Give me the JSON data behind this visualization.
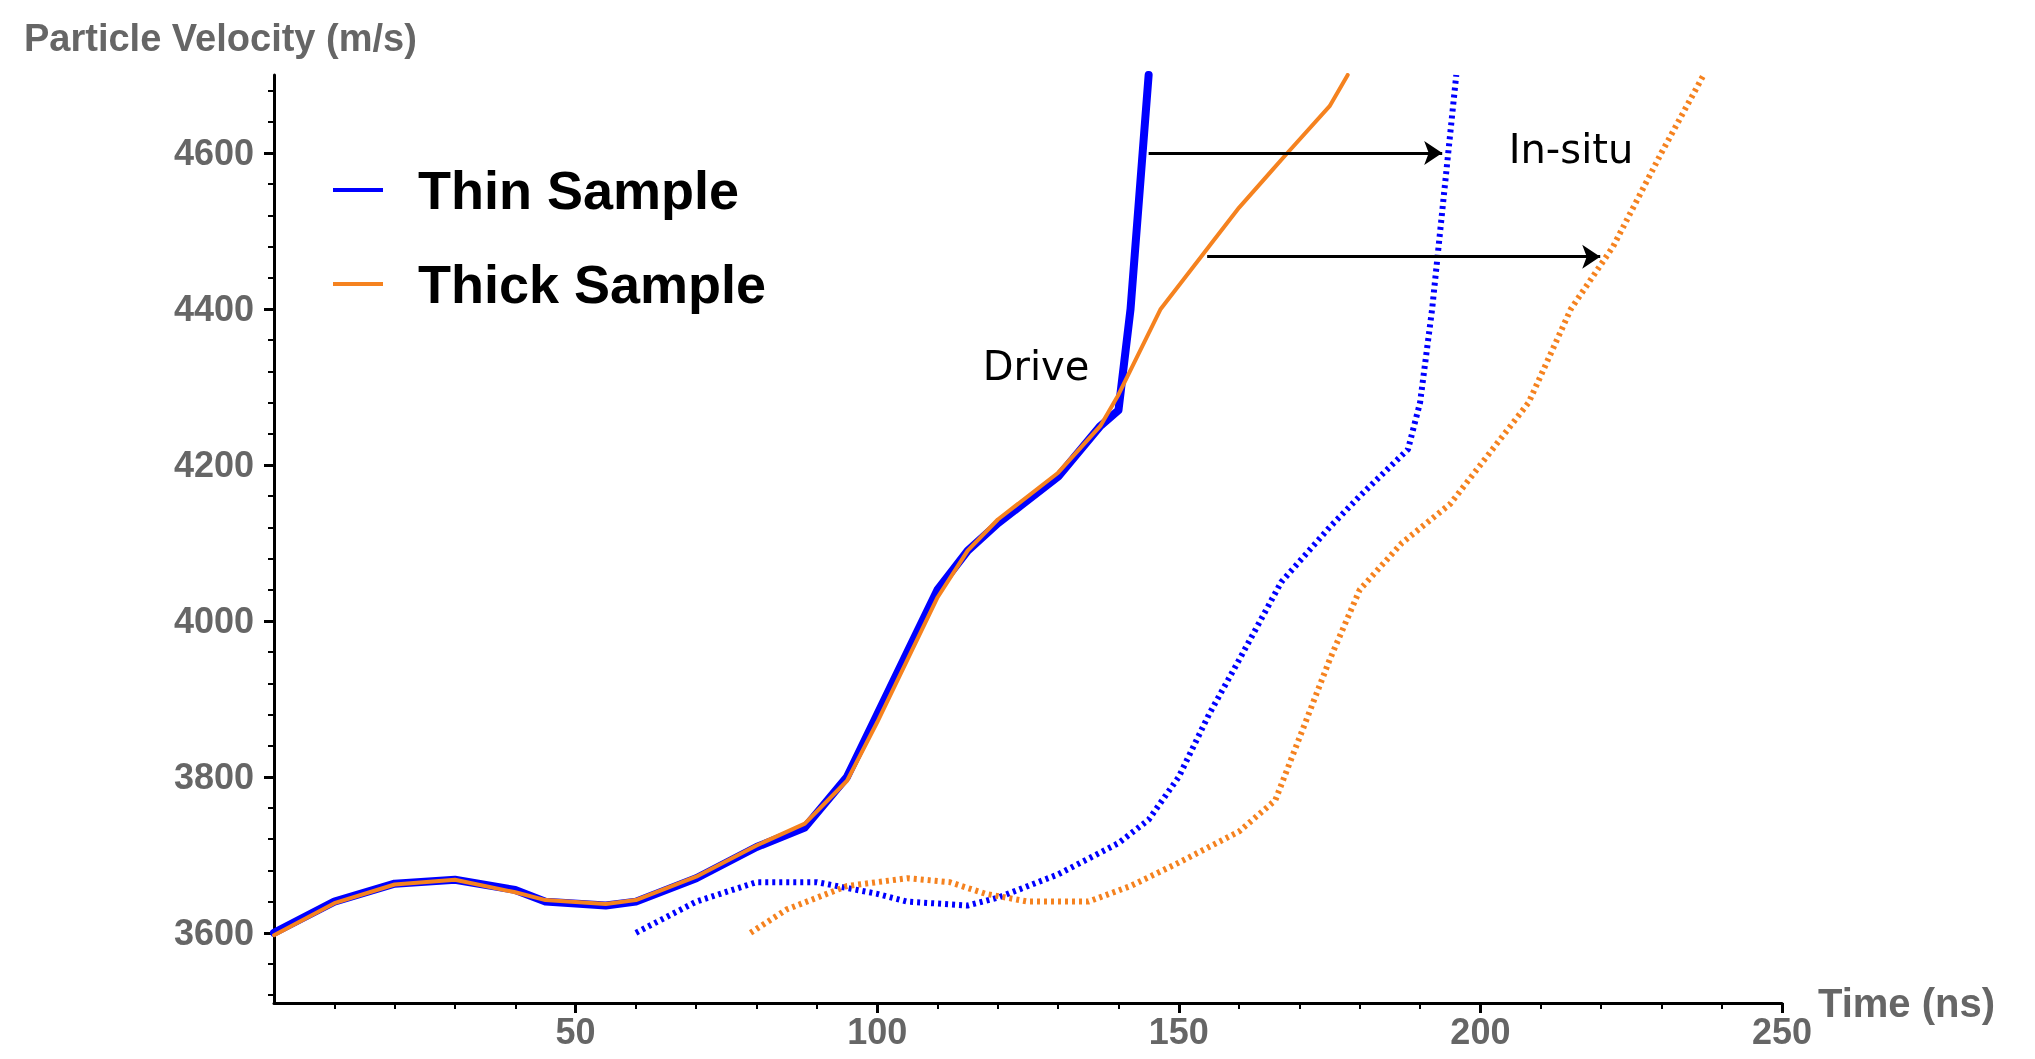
{
  "chart_data": {
    "type": "line",
    "ylabel": "Particle Velocity (m/s)",
    "xlabel": "Time (ns)",
    "xlim": [
      0,
      250
    ],
    "xticks": [
      50,
      100,
      150,
      200,
      250
    ],
    "ylim": [
      3510,
      4700
    ],
    "yticks": [
      3600,
      3800,
      4000,
      4200,
      4400,
      4600
    ],
    "grid": false,
    "legend": "top left",
    "marker": "none",
    "annotations": [
      "Drive",
      "In-situ"
    ],
    "series": [
      {
        "name": "Thin Sample",
        "color": "#0000ff",
        "line_style": "solid",
        "x": [
          0,
          10,
          20,
          30,
          40,
          45,
          55,
          60,
          70,
          80,
          88,
          95,
          100,
          105,
          110,
          115,
          120,
          130,
          137,
          140,
          142,
          144,
          145
        ],
        "values": [
          3600,
          3640,
          3663,
          3668,
          3655,
          3640,
          3635,
          3640,
          3670,
          3710,
          3735,
          3800,
          3880,
          3960,
          4040,
          4090,
          4125,
          4185,
          4250,
          4270,
          4400,
          4600,
          4700
        ]
      },
      {
        "name": "Thick Sample",
        "color": "#f5821f",
        "line_style": "solid",
        "x": [
          0,
          10,
          20,
          30,
          40,
          45,
          55,
          60,
          70,
          80,
          88,
          95,
          100,
          105,
          110,
          115,
          120,
          130,
          137,
          140,
          147,
          155,
          160,
          168,
          175,
          178
        ],
        "values": [
          3597,
          3638,
          3662,
          3668,
          3652,
          3642,
          3637,
          3642,
          3672,
          3712,
          3740,
          3795,
          3870,
          3950,
          4030,
          4090,
          4130,
          4190,
          4250,
          4290,
          4400,
          4480,
          4530,
          4600,
          4660,
          4700
        ]
      },
      {
        "color": "#0000ff",
        "line_style": "dotted",
        "x": [
          60,
          70,
          80,
          90,
          100,
          105,
          115,
          120,
          130,
          140,
          145,
          150,
          155,
          160,
          167,
          175,
          180,
          188,
          190,
          192,
          194,
          196
        ],
        "values": [
          3600,
          3640,
          3665,
          3665,
          3650,
          3640,
          3635,
          3645,
          3675,
          3715,
          3745,
          3800,
          3880,
          3950,
          4050,
          4120,
          4160,
          4220,
          4280,
          4400,
          4550,
          4700
        ]
      },
      {
        "color": "#f5821f",
        "line_style": "dotted",
        "x": [
          79,
          85,
          95,
          105,
          112,
          118,
          125,
          135,
          142,
          150,
          160,
          166,
          170,
          175,
          180,
          187,
          195,
          200,
          208,
          215,
          222,
          230,
          237
        ],
        "values": [
          3600,
          3630,
          3660,
          3670,
          3665,
          3650,
          3640,
          3640,
          3660,
          3690,
          3730,
          3770,
          3850,
          3950,
          4040,
          4100,
          4150,
          4200,
          4280,
          4400,
          4480,
          4600,
          4700
        ]
      }
    ]
  }
}
